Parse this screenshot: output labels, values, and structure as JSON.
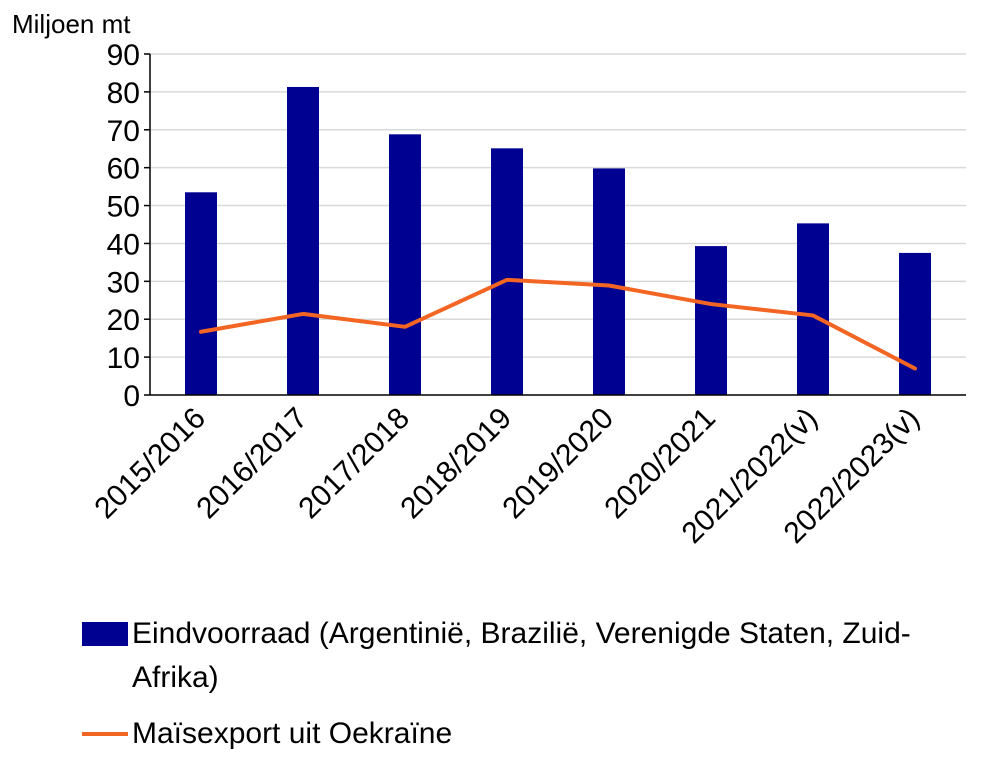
{
  "chart_data": {
    "type": "bar",
    "ylabel": "Miljoen mt",
    "ylim": [
      0,
      90
    ],
    "yticks": [
      0,
      10,
      20,
      30,
      40,
      50,
      60,
      70,
      80,
      90
    ],
    "grid": true,
    "legend_position": "bottom",
    "categories": [
      "2015/2016",
      "2016/2017",
      "2017/2018",
      "2018/2019",
      "2019/2020",
      "2020/2021",
      "2021/2022(v)",
      "2022/2023(v)"
    ],
    "series": [
      {
        "name": "Eindvoorraad (Argentinië, Brazilië, Verenigde Staten, Zuid-Afrika)",
        "type": "bar",
        "color": "#000091",
        "values": [
          53.5,
          81.3,
          68.8,
          65.1,
          59.8,
          39.3,
          45.3,
          37.5
        ]
      },
      {
        "name": "Maïsexport uit Oekraïne",
        "type": "line",
        "color": "#f26522",
        "values": [
          16.7,
          21.4,
          18.0,
          30.4,
          28.9,
          24.0,
          21.0,
          7.0
        ]
      }
    ]
  }
}
